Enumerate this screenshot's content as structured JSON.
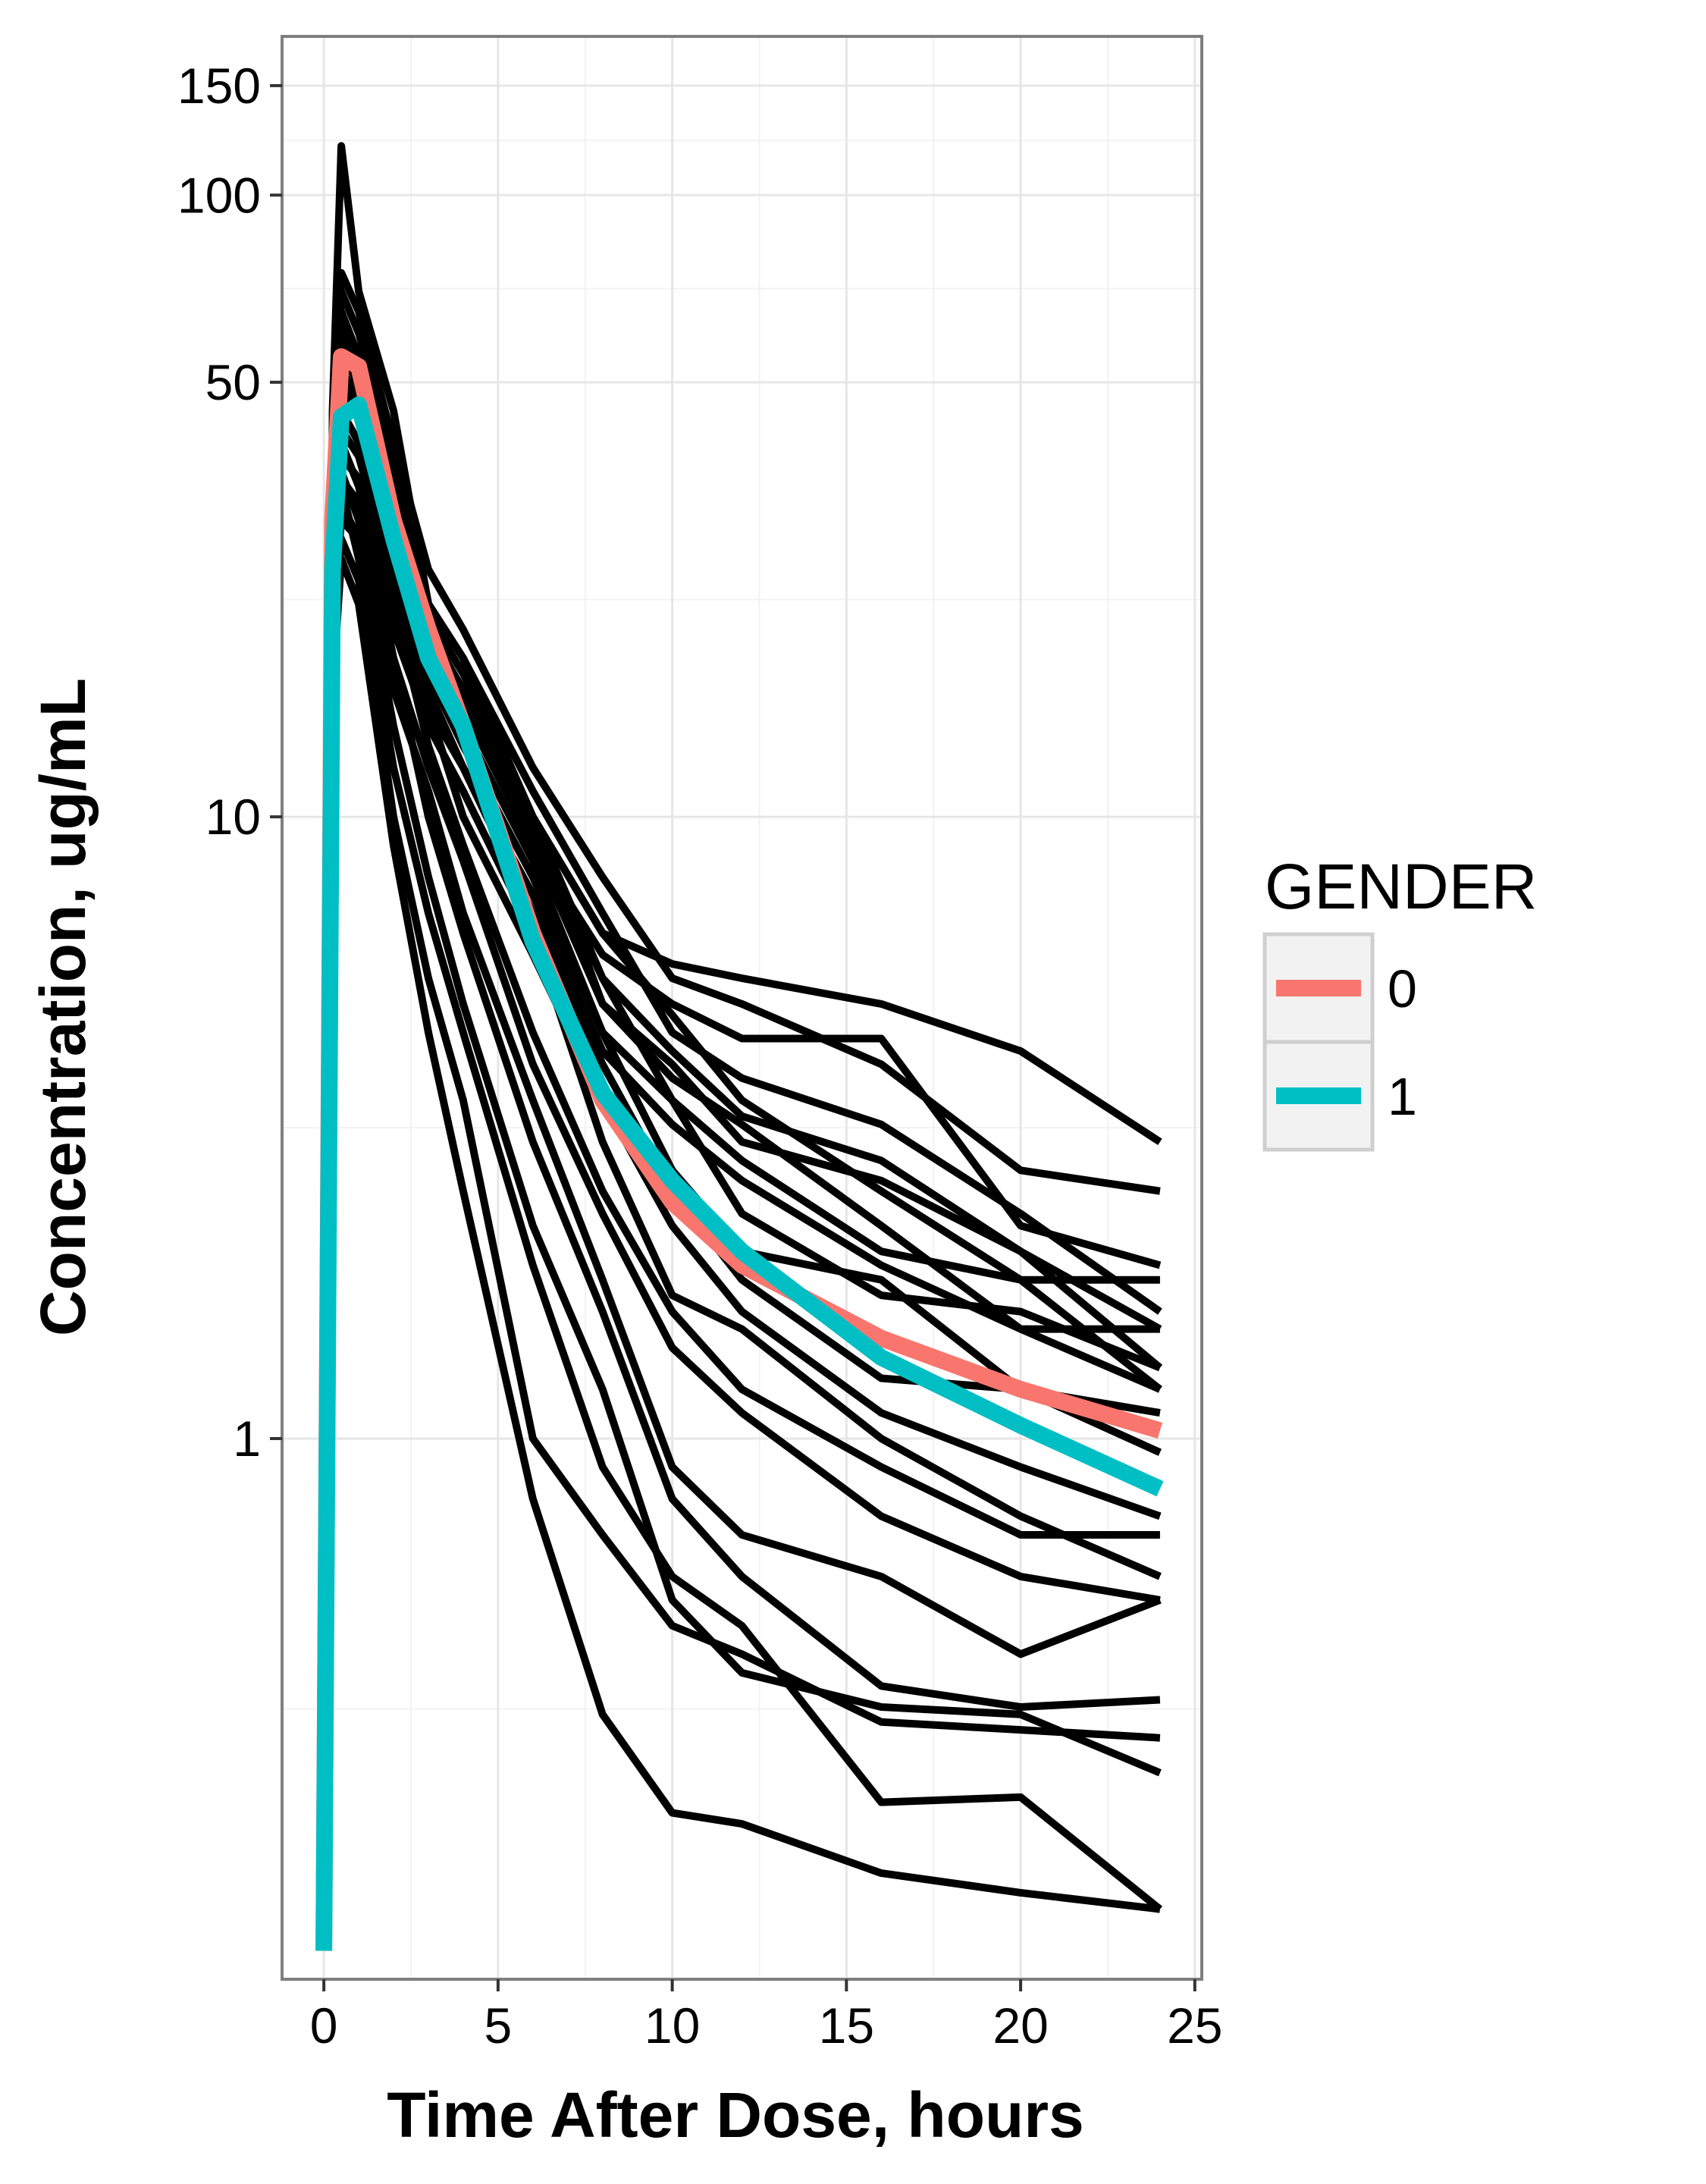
{
  "chart_data": {
    "type": "line",
    "xlabel": "Time After Dose, hours",
    "ylabel": "Concentration, ug/mL",
    "x_ticks": [
      0,
      5,
      10,
      15,
      20,
      25
    ],
    "y_ticks": [
      1,
      10,
      50,
      100,
      150
    ],
    "y_scale": "log",
    "xlim": [
      -1.2,
      25.2
    ],
    "ylim": [
      0.135,
      180
    ],
    "grid": true,
    "legend": {
      "title": "GENDER",
      "position": "right",
      "entries": [
        {
          "label": "0",
          "color": "#F8766D"
        },
        {
          "label": "1",
          "color": "#00BFC4"
        }
      ]
    },
    "individual_line_color": "#000000",
    "times": [
      0,
      0.25,
      0.5,
      1,
      2,
      3,
      4,
      6,
      8,
      10,
      12,
      16,
      20,
      24
    ],
    "subjects": [
      [
        0.15,
        45,
        120,
        70,
        45,
        22,
        18,
        10,
        6.5,
        5.8,
        5.5,
        5.0,
        4.2,
        3.0
      ],
      [
        0.15,
        40,
        75,
        65,
        40,
        25,
        20,
        12,
        8.0,
        5.5,
        5.0,
        4.0,
        2.7,
        2.5
      ],
      [
        0.15,
        35,
        65,
        55,
        35,
        20,
        15,
        9.0,
        6.0,
        5.0,
        4.4,
        4.4,
        2.2,
        1.9
      ],
      [
        0.15,
        38,
        70,
        60,
        38,
        22,
        18,
        11,
        7.0,
        4.5,
        3.8,
        3.2,
        2.3,
        1.6
      ],
      [
        0.15,
        30,
        55,
        50,
        30,
        21,
        17,
        10,
        6.5,
        4.8,
        3.5,
        2.5,
        1.8,
        1.2
      ],
      [
        0.15,
        32,
        58,
        52,
        32,
        20,
        16,
        9.5,
        5.5,
        4.2,
        3.3,
        2.8,
        2.0,
        1.3
      ],
      [
        0.15,
        28,
        48,
        45,
        28,
        19,
        15,
        9.0,
        5.0,
        4.0,
        3.0,
        2.6,
        2.0,
        1.5
      ],
      [
        0.15,
        34,
        60,
        54,
        33,
        22,
        18,
        10,
        5.0,
        3.8,
        3.2,
        2.2,
        1.5,
        1.5
      ],
      [
        0.15,
        25,
        45,
        40,
        25,
        17,
        13,
        8.0,
        4.5,
        3.5,
        2.8,
        2.0,
        1.8,
        1.8
      ],
      [
        0.15,
        36,
        62,
        55,
        34,
        21,
        17,
        10,
        5.5,
        3.5,
        2.3,
        1.7,
        1.6,
        1.3
      ],
      [
        0.15,
        26,
        42,
        38,
        24,
        16,
        12,
        7.5,
        4.2,
        3.2,
        2.6,
        1.9,
        1.5,
        1.2
      ],
      [
        0.15,
        30,
        50,
        46,
        27,
        18,
        14,
        8.5,
        4.5,
        2.7,
        2.0,
        1.8,
        1.2,
        0.95
      ],
      [
        0.15,
        24,
        38,
        35,
        22,
        15,
        12,
        7.0,
        4.0,
        2.5,
        1.8,
        1.25,
        1.2,
        1.1
      ],
      [
        0.15,
        28,
        52,
        48,
        26,
        15,
        10,
        6.0,
        3.5,
        2.2,
        1.6,
        1.1,
        0.9,
        0.75
      ],
      [
        0.15,
        22,
        35,
        32,
        20,
        14,
        11,
        6.5,
        3.0,
        1.7,
        1.5,
        1.0,
        0.75,
        0.6
      ],
      [
        0.15,
        26,
        45,
        40,
        22,
        13,
        9.0,
        4.5,
        2.5,
        1.6,
        1.2,
        0.9,
        0.7,
        0.7
      ],
      [
        0.15,
        20,
        30,
        28,
        18,
        12,
        8.5,
        4.0,
        2.3,
        1.4,
        1.1,
        0.75,
        0.6,
        0.55
      ],
      [
        0.15,
        22,
        36,
        30,
        16,
        11,
        7.0,
        3.5,
        1.8,
        0.9,
        0.7,
        0.6,
        0.45,
        0.55
      ],
      [
        0.15,
        24,
        40,
        34,
        18,
        10,
        6.5,
        3.0,
        1.6,
        0.8,
        0.6,
        0.4,
        0.37,
        0.38
      ],
      [
        0.15,
        20,
        32,
        28,
        14,
        8.0,
        5.0,
        2.2,
        1.2,
        0.55,
        0.42,
        0.37,
        0.36,
        0.29
      ],
      [
        0.15,
        22,
        34,
        26,
        12,
        7.0,
        4.5,
        1.9,
        0.9,
        0.6,
        0.5,
        0.26,
        0.265,
        0.175
      ],
      [
        0.15,
        18,
        28,
        24,
        10,
        5.5,
        3.5,
        1.0,
        0.7,
        0.5,
        0.45,
        0.35,
        0.34,
        0.33
      ],
      [
        0.15,
        16,
        26,
        22,
        9.0,
        4.5,
        2.5,
        0.8,
        0.36,
        0.25,
        0.24,
        0.2,
        0.186,
        0.175
      ]
    ],
    "series": [
      {
        "name": "0",
        "color": "#F8766D",
        "x": [
          0,
          0.25,
          0.5,
          1,
          2,
          3,
          4,
          6,
          8,
          10,
          12,
          16,
          20,
          24
        ],
        "y": [
          0.15,
          30,
          55,
          53,
          30,
          20,
          14,
          6.5,
          3.5,
          2.4,
          1.9,
          1.45,
          1.2,
          1.03
        ]
      },
      {
        "name": "1",
        "color": "#00BFC4",
        "x": [
          0,
          0.25,
          0.5,
          1,
          2,
          3,
          4,
          6,
          8,
          10,
          12,
          16,
          20,
          24
        ],
        "y": [
          0.15,
          25,
          44,
          46,
          28,
          18,
          14,
          6.3,
          3.6,
          2.6,
          2.0,
          1.35,
          1.05,
          0.83
        ]
      }
    ]
  }
}
